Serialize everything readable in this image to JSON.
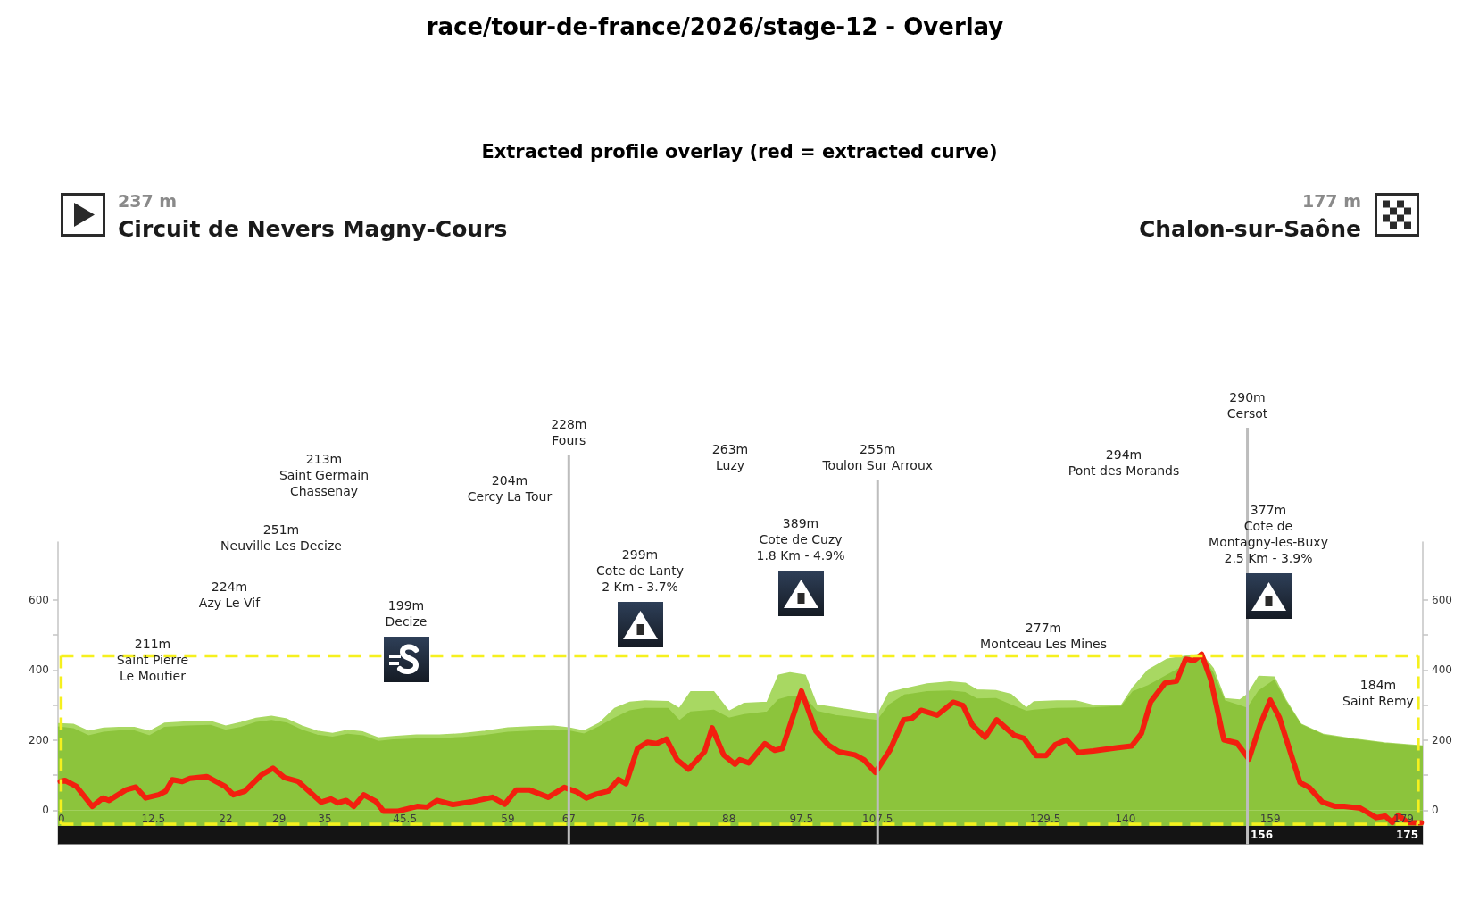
{
  "chart_data": {
    "type": "area",
    "title": "race/tour-de-france/2026/stage-12 - Overlay",
    "subtitle": "Extracted profile overlay (red = extracted curve)",
    "x": [
      0,
      2,
      4,
      6,
      8,
      10,
      12,
      14,
      17,
      20,
      22,
      24,
      26,
      28,
      30,
      32,
      34,
      36,
      38,
      40,
      42,
      44,
      47,
      50,
      53,
      56,
      59,
      62,
      65,
      67,
      69,
      71,
      73,
      75,
      77,
      80,
      81.5,
      83,
      86,
      88,
      90,
      93,
      94.5,
      96,
      98,
      99.5,
      102,
      105,
      107.5,
      109,
      111,
      114,
      117,
      119,
      120.5,
      123,
      125,
      127,
      128,
      131,
      133.5,
      136,
      139.5,
      141,
      143,
      145.5,
      148,
      150,
      151.5,
      153,
      155,
      156,
      157.5,
      159.5,
      161,
      163,
      166,
      170,
      174,
      179
    ],
    "series": [
      {
        "color": "#a8d862",
        "values": [
          247,
          245,
          225,
          234,
          236,
          236,
          225,
          248,
          252,
          253,
          240,
          250,
          262,
          268,
          260,
          240,
          225,
          219,
          228,
          223,
          206,
          210,
          214,
          214,
          218,
          225,
          235,
          238,
          240,
          235,
          226,
          248,
          290,
          308,
          312,
          310,
          290,
          338,
          338,
          282,
          305,
          308,
          385,
          392,
          385,
          300,
          292,
          282,
          272,
          335,
          346,
          360,
          366,
          362,
          343,
          341,
          330,
          291,
          309,
          312,
          312,
          298,
          300,
          350,
          400,
          431,
          440,
          445,
          405,
          318,
          314,
          330,
          382,
          380,
          315,
          246,
          216,
          203,
          192,
          183
        ]
      },
      {
        "color": "#8cc43c",
        "values": [
          237,
          232,
          212,
          222,
          226,
          226,
          212,
          236,
          240,
          242,
          228,
          236,
          250,
          256,
          248,
          228,
          214,
          208,
          216,
          212,
          196,
          200,
          203,
          204,
          207,
          213,
          222,
          225,
          228,
          226,
          217,
          238,
          262,
          283,
          290,
          290,
          255,
          280,
          285,
          262,
          272,
          280,
          315,
          324,
          320,
          282,
          270,
          262,
          256,
          300,
          328,
          338,
          340,
          335,
          317,
          318,
          300,
          282,
          285,
          290,
          291,
          292,
          296,
          338,
          355,
          385,
          415,
          442,
          390,
          312,
          298,
          290,
          340,
          370,
          310,
          244,
          214,
          201,
          190,
          181
        ]
      },
      {
        "type": "line",
        "color": "#f2200f",
        "x": [
          0.3,
          0.9,
          2.4,
          4.5,
          5.9,
          6.7,
          8.9,
          10.2,
          11.5,
          13.2,
          14.1,
          15,
          16.3,
          17.3,
          19.5,
          21.9,
          23,
          24.5,
          26.7,
          28.2,
          29.7,
          31.5,
          33.2,
          34.5,
          35.8,
          36.7,
          37.8,
          38.8,
          40.1,
          41.7,
          42.7,
          44.5,
          47.1,
          48.4,
          49.7,
          51.8,
          54.4,
          57,
          58.6,
          60.1,
          61.8,
          64.3,
          66.4,
          68,
          69.3,
          70.6,
          72.2,
          73.5,
          74.5,
          76,
          77.3,
          78.5,
          79.8,
          81.2,
          82.7,
          84.8,
          85.8,
          87.3,
          88.8,
          89.4,
          90.6,
          92.7,
          94,
          95,
          97.5,
          99.4,
          101.1,
          102.4,
          104.5,
          105.7,
          107.2,
          109.1,
          110.9,
          112,
          113.2,
          115.3,
          117.4,
          118.7,
          119.9,
          121.6,
          123.1,
          125.4,
          126.7,
          128.3,
          129.6,
          130.8,
          132.3,
          133.8,
          135.8,
          138.8,
          140.8,
          142.1,
          143.3,
          145.2,
          146.7,
          147.9,
          149,
          150,
          151.2,
          152.9,
          154.6,
          156.2,
          157.7,
          159,
          160.2,
          162.9,
          164.1,
          165.8,
          167.5,
          168.7,
          170.8,
          172.9,
          174.1,
          175,
          175.8,
          177,
          178.8
        ],
        "values": [
          82,
          85,
          68,
          11,
          35,
          28,
          58,
          66,
          35,
          44,
          54,
          87,
          82,
          91,
          96,
          68,
          44,
          54,
          101,
          120,
          93,
          82,
          49,
          23,
          32,
          21,
          28,
          11,
          44,
          25,
          -3,
          -3,
          11,
          9,
          28,
          16,
          25,
          37,
          17,
          58,
          58,
          37,
          65,
          53,
          35,
          46,
          55,
          88,
          76,
          176,
          194,
          190,
          203,
          144,
          117,
          167,
          235,
          158,
          131,
          144,
          135,
          190,
          171,
          176,
          340,
          226,
          185,
          167,
          158,
          144,
          108,
          171,
          258,
          262,
          285,
          271,
          308,
          299,
          244,
          208,
          258,
          214,
          205,
          156,
          156,
          187,
          201,
          165,
          169,
          178,
          183,
          219,
          309,
          363,
          368,
          431,
          427,
          445,
          372,
          201,
          192,
          146,
          246,
          314,
          264,
          79,
          65,
          24,
          11,
          11,
          6,
          -21,
          -17,
          -35,
          -14,
          -35,
          -36
        ]
      }
    ],
    "xlim": [
      0,
      179
    ],
    "xticks": [
      0,
      12.5,
      22,
      29,
      35,
      45.5,
      59,
      67,
      76,
      88,
      97.5,
      107.5,
      129.5,
      140,
      159,
      179
    ],
    "ylim": [
      -97,
      765
    ],
    "yticks": [
      0,
      {
        "value": 100,
        "label": null
      },
      200,
      {
        "value": 300,
        "label": null
      },
      400,
      {
        "value": 500,
        "label": null
      },
      600
    ],
    "y2lim": [
      -97,
      765
    ],
    "y2ticks": [
      0,
      {
        "value": 100,
        "label": null
      },
      200,
      {
        "value": 300,
        "label": null
      },
      400,
      {
        "value": 500,
        "label": null
      },
      600
    ],
    "bands": [
      {
        "axis": "y",
        "from": -97,
        "to": -45,
        "color": "#141414"
      },
      {
        "axis": "y",
        "from": -45,
        "to": 0,
        "color": "#8cc43c"
      }
    ],
    "ref_lines": [
      {
        "axis": "x",
        "value": 67,
        "label": "228m\nFours",
        "color": "#bdbdbd"
      },
      {
        "axis": "x",
        "value": 107.5,
        "label": "255m\nToulon Sur Arroux",
        "color": "#bdbdbd"
      },
      {
        "axis": "x",
        "value": 156,
        "label": "290m\nCersot",
        "color": "#bdbdbd"
      },
      {
        "axis": "y",
        "value": 440,
        "color": "#f5f01e",
        "line_style": "dashed"
      },
      {
        "axis": "y",
        "value": -40,
        "color": "#f5f01e",
        "line_style": "dashed"
      },
      {
        "axis": "x",
        "value": 0.4,
        "color": "#f5f01e",
        "line_style": "dashed"
      },
      {
        "axis": "x",
        "value": 178.4,
        "color": "#f5f01e",
        "line_style": "dashed"
      }
    ],
    "annotations": [
      "237 m",
      "Circuit de Nevers Magny-Cours",
      "177 m",
      "Chalon-sur-Saône",
      "211m\nSaint Pierre\nLe Moutier",
      "224m\nAzy Le Vif",
      "251m\nNeuville Les Decize",
      "213m\nSaint Germain\nChassenay",
      "199m\nDecize",
      "204m\nCercy La Tour",
      "299m\nCote de Lanty\n2 Km - 3.7%",
      "263m\nLuzy",
      "389m\nCote de Cuzy\n1.8 Km - 4.9%",
      "277m\nMontceau Les Mines",
      "294m\nPont des Morands",
      "377m\nCote de\nMontagny-les-Buxy\n2.5 Km - 3.9%",
      "184m\nSaint Remy",
      "156",
      "175"
    ]
  }
}
